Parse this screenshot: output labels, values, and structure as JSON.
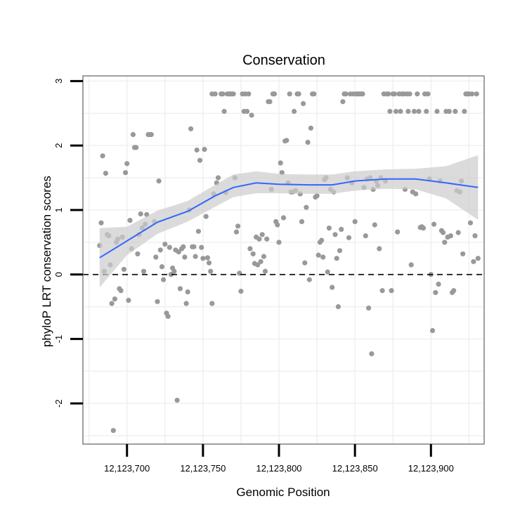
{
  "chart_data": {
    "type": "scatter",
    "title": "Conservation",
    "xlabel": "Genomic Position",
    "ylabel": "phyloP LRT conservation scores",
    "xlim": [
      12123671,
      12123935
    ],
    "ylim": [
      -2.63,
      3.08
    ],
    "x_ticks": [
      {
        "value": 12123700,
        "label": "12,123,700"
      },
      {
        "value": 12123750,
        "label": "12,123,750"
      },
      {
        "value": 12123800,
        "label": "12,123,800"
      },
      {
        "value": 12123850,
        "label": "12,123,850"
      },
      {
        "value": 12123900,
        "label": "12,123,900"
      }
    ],
    "y_ticks": [
      {
        "value": -2,
        "label": "-2"
      },
      {
        "value": -1,
        "label": "-1"
      },
      {
        "value": 0,
        "label": "0"
      },
      {
        "value": 1,
        "label": "1"
      },
      {
        "value": 2,
        "label": "2"
      },
      {
        "value": 3,
        "label": "3"
      }
    ],
    "grid": true,
    "reference_line": {
      "y": 0,
      "style": "dashed"
    },
    "colors": {
      "points": "#999999",
      "smooth": "#3366ff",
      "ribbon": "#cccccc",
      "grid": "#f0f0f0",
      "panel_border": "#808080"
    },
    "points": [
      [
        12123682,
        0.45
      ],
      [
        12123683,
        0.8
      ],
      [
        12123684,
        1.84
      ],
      [
        12123685,
        0.05
      ],
      [
        12123686,
        1.57
      ],
      [
        12123687,
        0.62
      ],
      [
        12123688,
        0.6
      ],
      [
        12123689,
        0.15
      ],
      [
        12123690,
        -0.45
      ],
      [
        12123691,
        -2.42
      ],
      [
        12123692,
        -0.38
      ],
      [
        12123693,
        0.5
      ],
      [
        12123694,
        0.55
      ],
      [
        12123695,
        -0.22
      ],
      [
        12123696,
        -0.25
      ],
      [
        12123697,
        0.58
      ],
      [
        12123698,
        0.08
      ],
      [
        12123699,
        1.58
      ],
      [
        12123700,
        1.72
      ],
      [
        12123701,
        -0.4
      ],
      [
        12123702,
        0.84
      ],
      [
        12123703,
        0.4
      ],
      [
        12123704,
        2.17
      ],
      [
        12123705,
        1.97
      ],
      [
        12123706,
        1.97
      ],
      [
        12123707,
        0.32
      ],
      [
        12123708,
        0.62
      ],
      [
        12123709,
        0.94
      ],
      [
        12123710,
        0.72
      ],
      [
        12123711,
        0.05
      ],
      [
        12123712,
        0.78
      ],
      [
        12123713,
        0.93
      ],
      [
        12123714,
        2.17
      ],
      [
        12123715,
        2.17
      ],
      [
        12123716,
        2.17
      ],
      [
        12123718,
        0.82
      ],
      [
        12123719,
        0.27
      ],
      [
        12123720,
        -0.42
      ],
      [
        12123721,
        1.45
      ],
      [
        12123722,
        0.38
      ],
      [
        12123723,
        0.12
      ],
      [
        12123724,
        -0.08
      ],
      [
        12123725,
        0.47
      ],
      [
        12123726,
        -0.6
      ],
      [
        12123727,
        -0.65
      ],
      [
        12123728,
        0.42
      ],
      [
        12123729,
        0.0
      ],
      [
        12123730,
        0.1
      ],
      [
        12123731,
        0.05
      ],
      [
        12123732,
        0.38
      ],
      [
        12123733,
        -1.95
      ],
      [
        12123734,
        0.35
      ],
      [
        12123735,
        -0.22
      ],
      [
        12123736,
        0.4
      ],
      [
        12123737,
        0.43
      ],
      [
        12123738,
        0.27
      ],
      [
        12123739,
        -0.45
      ],
      [
        12123740,
        -0.27
      ],
      [
        12123741,
        1.0
      ],
      [
        12123742,
        2.26
      ],
      [
        12123743,
        0.43
      ],
      [
        12123744,
        0.43
      ],
      [
        12123745,
        0.28
      ],
      [
        12123746,
        1.93
      ],
      [
        12123747,
        0.67
      ],
      [
        12123748,
        1.77
      ],
      [
        12123749,
        0.42
      ],
      [
        12123750,
        0.25
      ],
      [
        12123751,
        1.94
      ],
      [
        12123752,
        0.9
      ],
      [
        12123753,
        0.26
      ],
      [
        12123754,
        0.18
      ],
      [
        12123755,
        0.05
      ],
      [
        12123756,
        -0.45
      ],
      [
        12123756,
        2.8
      ],
      [
        12123757,
        1.25
      ],
      [
        12123758,
        2.8
      ],
      [
        12123759,
        1.42
      ],
      [
        12123760,
        1.5
      ],
      [
        12123762,
        2.8
      ],
      [
        12123763,
        2.8
      ],
      [
        12123764,
        2.53
      ],
      [
        12123765,
        1.27
      ],
      [
        12123766,
        2.8
      ],
      [
        12123767,
        2.8
      ],
      [
        12123768,
        2.8
      ],
      [
        12123769,
        2.8
      ],
      [
        12123770,
        2.8
      ],
      [
        12123771,
        1.5
      ],
      [
        12123772,
        0.66
      ],
      [
        12123773,
        0.75
      ],
      [
        12123774,
        0.02
      ],
      [
        12123775,
        -0.26
      ],
      [
        12123776,
        2.8
      ],
      [
        12123777,
        2.53
      ],
      [
        12123778,
        2.8
      ],
      [
        12123779,
        2.53
      ],
      [
        12123780,
        2.8
      ],
      [
        12123781,
        0.4
      ],
      [
        12123782,
        2.47
      ],
      [
        12123783,
        0.32
      ],
      [
        12123784,
        0.17
      ],
      [
        12123785,
        0.58
      ],
      [
        12123786,
        0.15
      ],
      [
        12123787,
        0.55
      ],
      [
        12123788,
        0.2
      ],
      [
        12123789,
        0.62
      ],
      [
        12123790,
        0.28
      ],
      [
        12123791,
        0.05
      ],
      [
        12123792,
        0.55
      ],
      [
        12123793,
        2.68
      ],
      [
        12123794,
        2.68
      ],
      [
        12123795,
        1.32
      ],
      [
        12123796,
        2.8
      ],
      [
        12123797,
        2.8
      ],
      [
        12123798,
        0.82
      ],
      [
        12123799,
        0.77
      ],
      [
        12123800,
        0.5
      ],
      [
        12123801,
        1.73
      ],
      [
        12123802,
        1.58
      ],
      [
        12123803,
        0.88
      ],
      [
        12123804,
        2.07
      ],
      [
        12123805,
        2.08
      ],
      [
        12123806,
        1.42
      ],
      [
        12123807,
        2.8
      ],
      [
        12123808,
        1.28
      ],
      [
        12123809,
        1.28
      ],
      [
        12123810,
        2.53
      ],
      [
        12123811,
        1.3
      ],
      [
        12123812,
        2.8
      ],
      [
        12123813,
        2.8
      ],
      [
        12123814,
        1.25
      ],
      [
        12123815,
        0.82
      ],
      [
        12123816,
        2.65
      ],
      [
        12123817,
        0.18
      ],
      [
        12123818,
        1.04
      ],
      [
        12123819,
        2.05
      ],
      [
        12123820,
        -0.08
      ],
      [
        12123821,
        2.27
      ],
      [
        12123822,
        2.8
      ],
      [
        12123823,
        2.8
      ],
      [
        12123824,
        1.2
      ],
      [
        12123825,
        1.22
      ],
      [
        12123826,
        0.3
      ],
      [
        12123827,
        0.5
      ],
      [
        12123828,
        0.53
      ],
      [
        12123829,
        0.27
      ],
      [
        12123830,
        1.47
      ],
      [
        12123831,
        1.5
      ],
      [
        12123832,
        0.04
      ],
      [
        12123833,
        0.72
      ],
      [
        12123834,
        1.32
      ],
      [
        12123835,
        -0.2
      ],
      [
        12123836,
        1.28
      ],
      [
        12123837,
        0.62
      ],
      [
        12123838,
        0.25
      ],
      [
        12123839,
        -0.5
      ],
      [
        12123840,
        0.37
      ],
      [
        12123841,
        0.7
      ],
      [
        12123842,
        2.68
      ],
      [
        12123843,
        2.8
      ],
      [
        12123844,
        2.8
      ],
      [
        12123845,
        1.5
      ],
      [
        12123846,
        0.57
      ],
      [
        12123847,
        2.8
      ],
      [
        12123848,
        1.42
      ],
      [
        12123849,
        2.8
      ],
      [
        12123850,
        0.82
      ],
      [
        12123851,
        2.8
      ],
      [
        12123852,
        2.8
      ],
      [
        12123853,
        2.8
      ],
      [
        12123854,
        2.8
      ],
      [
        12123855,
        2.8
      ],
      [
        12123856,
        1.35
      ],
      [
        12123857,
        0.6
      ],
      [
        12123858,
        1.48
      ],
      [
        12123859,
        -0.52
      ],
      [
        12123860,
        1.5
      ],
      [
        12123861,
        -1.23
      ],
      [
        12123862,
        1.32
      ],
      [
        12123863,
        0.77
      ],
      [
        12123864,
        1.45
      ],
      [
        12123865,
        1.38
      ],
      [
        12123866,
        0.4
      ],
      [
        12123867,
        1.5
      ],
      [
        12123868,
        -0.25
      ],
      [
        12123869,
        2.8
      ],
      [
        12123870,
        1.45
      ],
      [
        12123871,
        2.8
      ],
      [
        12123872,
        2.8
      ],
      [
        12123873,
        2.53
      ],
      [
        12123874,
        -0.25
      ],
      [
        12123875,
        2.8
      ],
      [
        12123876,
        2.8
      ],
      [
        12123877,
        2.53
      ],
      [
        12123878,
        0.66
      ],
      [
        12123879,
        2.8
      ],
      [
        12123880,
        2.53
      ],
      [
        12123881,
        2.8
      ],
      [
        12123882,
        2.8
      ],
      [
        12123883,
        1.32
      ],
      [
        12123884,
        2.8
      ],
      [
        12123885,
        2.53
      ],
      [
        12123886,
        2.8
      ],
      [
        12123887,
        0.15
      ],
      [
        12123888,
        1.28
      ],
      [
        12123889,
        2.53
      ],
      [
        12123890,
        1.25
      ],
      [
        12123891,
        2.8
      ],
      [
        12123892,
        2.53
      ],
      [
        12123893,
        0.73
      ],
      [
        12123894,
        0.74
      ],
      [
        12123895,
        0.72
      ],
      [
        12123896,
        2.8
      ],
      [
        12123897,
        2.53
      ],
      [
        12123898,
        2.8
      ],
      [
        12123899,
        1.48
      ],
      [
        12123900,
        0.0
      ],
      [
        12123901,
        -0.87
      ],
      [
        12123902,
        0.78
      ],
      [
        12123903,
        -0.28
      ],
      [
        12123904,
        2.53
      ],
      [
        12123905,
        -0.15
      ],
      [
        12123906,
        1.45
      ],
      [
        12123907,
        0.68
      ],
      [
        12123908,
        0.65
      ],
      [
        12123909,
        0.5
      ],
      [
        12123910,
        2.53
      ],
      [
        12123911,
        0.58
      ],
      [
        12123912,
        2.53
      ],
      [
        12123913,
        0.6
      ],
      [
        12123914,
        -0.28
      ],
      [
        12123915,
        -0.25
      ],
      [
        12123916,
        2.53
      ],
      [
        12123917,
        1.3
      ],
      [
        12123918,
        0.65
      ],
      [
        12123919,
        1.28
      ],
      [
        12123920,
        1.45
      ],
      [
        12123921,
        0.32
      ],
      [
        12123922,
        2.53
      ],
      [
        12123923,
        2.8
      ],
      [
        12123924,
        2.8
      ],
      [
        12123925,
        2.8
      ],
      [
        12123926,
        0.8
      ],
      [
        12123927,
        2.8
      ],
      [
        12123928,
        0.2
      ],
      [
        12123929,
        0.6
      ],
      [
        12123930,
        2.8
      ],
      [
        12123931,
        0.25
      ]
    ],
    "smooth": [
      {
        "x": 12123682,
        "y": 0.26,
        "lo": -0.2,
        "hi": 0.72
      },
      {
        "x": 12123700,
        "y": 0.52,
        "lo": 0.3,
        "hi": 0.74
      },
      {
        "x": 12123720,
        "y": 0.81,
        "lo": 0.63,
        "hi": 0.99
      },
      {
        "x": 12123740,
        "y": 0.98,
        "lo": 0.82,
        "hi": 1.14
      },
      {
        "x": 12123758,
        "y": 1.22,
        "lo": 1.05,
        "hi": 1.39
      },
      {
        "x": 12123770,
        "y": 1.35,
        "lo": 1.2,
        "hi": 1.55
      },
      {
        "x": 12123785,
        "y": 1.42,
        "lo": 1.26,
        "hi": 1.6
      },
      {
        "x": 12123800,
        "y": 1.4,
        "lo": 1.26,
        "hi": 1.56
      },
      {
        "x": 12123820,
        "y": 1.39,
        "lo": 1.25,
        "hi": 1.55
      },
      {
        "x": 12123835,
        "y": 1.39,
        "lo": 1.25,
        "hi": 1.55
      },
      {
        "x": 12123850,
        "y": 1.45,
        "lo": 1.3,
        "hi": 1.6
      },
      {
        "x": 12123870,
        "y": 1.48,
        "lo": 1.33,
        "hi": 1.63
      },
      {
        "x": 12123890,
        "y": 1.48,
        "lo": 1.32,
        "hi": 1.64
      },
      {
        "x": 12123910,
        "y": 1.42,
        "lo": 1.18,
        "hi": 1.68
      },
      {
        "x": 12123931,
        "y": 1.35,
        "lo": 0.85,
        "hi": 1.85
      }
    ]
  }
}
